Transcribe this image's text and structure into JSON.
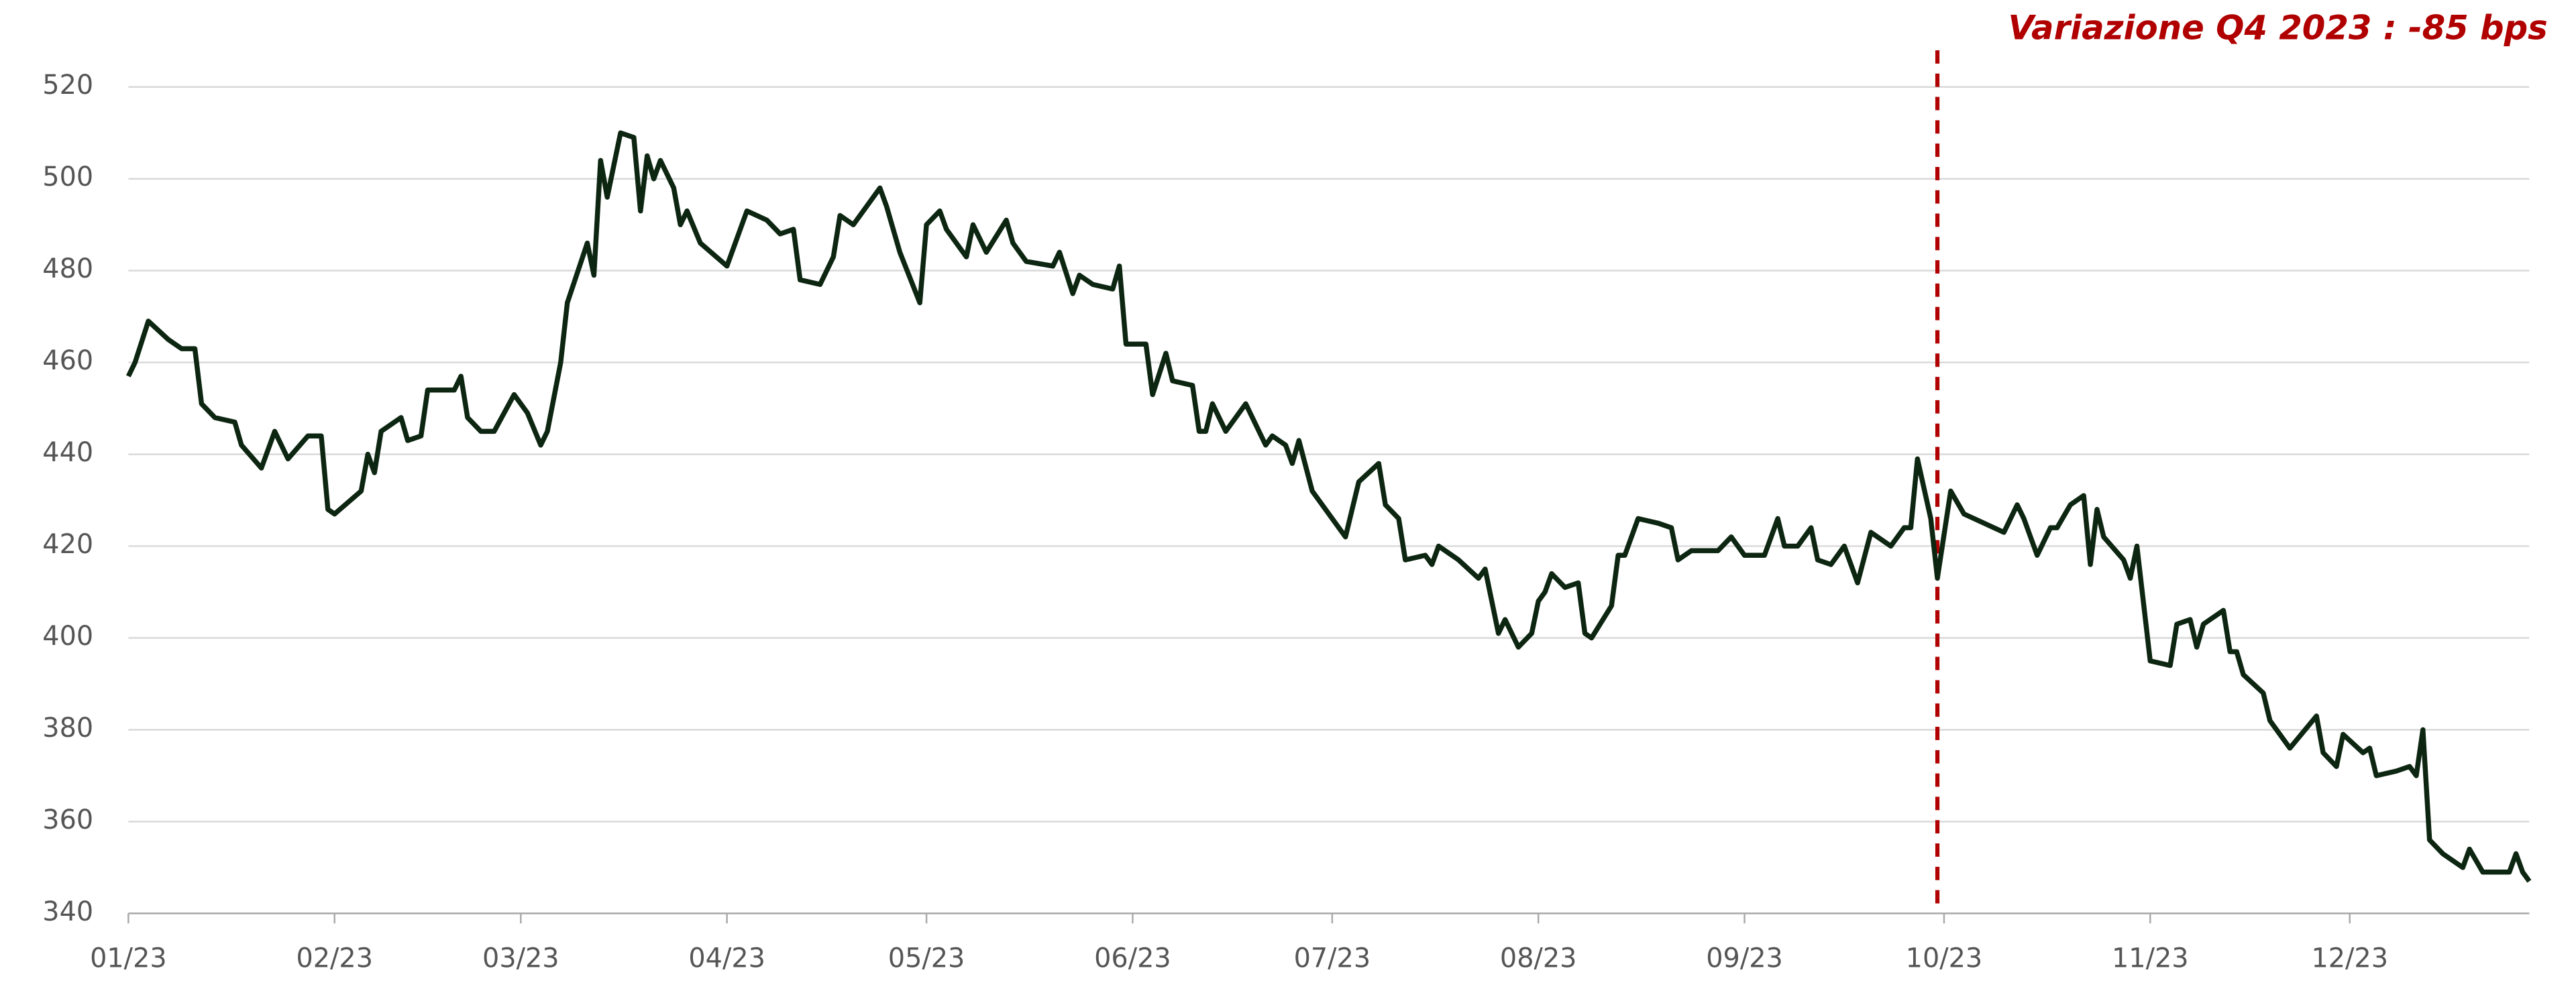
{
  "chart_data": {
    "type": "line",
    "annotation": "Variazione Q4 2023 : -85 bps",
    "annotation_color": "#b00000",
    "vline": {
      "x": 272,
      "color": "#b00000",
      "dashed": true
    },
    "x": [
      0,
      1,
      3,
      6,
      8,
      10,
      11,
      13,
      16,
      17,
      20,
      22,
      24,
      27,
      29,
      30,
      31,
      35,
      36,
      37,
      38,
      41,
      42,
      44,
      45,
      49,
      50,
      51,
      53,
      55,
      58,
      60,
      62,
      63,
      65,
      66,
      69,
      70,
      71,
      72,
      74,
      76,
      77,
      78,
      79,
      80,
      82,
      83,
      84,
      86,
      90,
      91,
      93,
      96,
      98,
      100,
      101,
      104,
      106,
      107,
      109,
      113,
      114,
      116,
      119,
      120,
      122,
      123,
      126,
      127,
      129,
      132,
      133,
      135,
      139,
      140,
      142,
      143,
      145,
      148,
      149,
      150,
      153,
      154,
      156,
      157,
      160,
      161,
      162,
      163,
      165,
      168,
      171,
      172,
      174,
      175,
      176,
      178,
      183,
      185,
      188,
      189,
      191,
      192,
      195,
      196,
      197,
      200,
      203,
      204,
      206,
      207,
      209,
      211,
      212,
      213,
      214,
      216,
      218,
      219,
      220,
      223,
      224,
      225,
      227,
      230,
      232,
      233,
      235,
      239,
      241,
      243,
      246,
      248,
      249,
      251,
      253,
      254,
      256,
      258,
      260,
      262,
      265,
      267,
      268,
      269,
      271,
      272,
      274,
      276,
      282,
      284,
      285,
      287,
      289,
      290,
      292,
      294,
      295,
      296,
      297,
      300,
      301,
      302,
      304,
      307,
      308,
      310,
      311,
      312,
      314,
      315,
      316,
      317,
      318,
      321,
      322,
      325,
      329,
      330,
      332,
      333,
      336,
      337,
      338,
      341,
      343,
      344,
      345,
      346,
      348,
      351,
      352,
      354,
      358,
      359,
      360,
      361
    ],
    "series": [
      {
        "color": "#0d2611",
        "values": [
          457,
          460,
          469,
          465,
          463,
          463,
          451,
          448,
          447,
          442,
          437,
          445,
          439,
          444,
          444,
          428,
          427,
          432,
          440,
          436,
          445,
          448,
          443,
          444,
          454,
          454,
          457,
          448,
          445,
          445,
          453,
          449,
          442,
          445,
          460,
          473,
          486,
          479,
          504,
          496,
          510,
          509,
          493,
          505,
          500,
          504,
          498,
          490,
          493,
          486,
          481,
          485,
          493,
          491,
          488,
          489,
          478,
          477,
          483,
          492,
          490,
          498,
          494,
          484,
          473,
          490,
          493,
          489,
          483,
          490,
          484,
          491,
          486,
          482,
          481,
          484,
          475,
          479,
          477,
          476,
          481,
          464,
          464,
          453,
          462,
          456,
          455,
          445,
          445,
          451,
          445,
          451,
          442,
          444,
          442,
          438,
          443,
          432,
          422,
          434,
          438,
          429,
          426,
          417,
          418,
          416,
          420,
          417,
          413,
          415,
          401,
          404,
          398,
          401,
          408,
          410,
          414,
          411,
          412,
          401,
          400,
          407,
          418,
          418,
          426,
          425,
          424,
          417,
          419,
          419,
          422,
          418,
          418,
          426,
          420,
          420,
          424,
          417,
          416,
          420,
          412,
          423,
          420,
          424,
          424,
          439,
          426,
          413,
          432,
          427,
          423,
          429,
          426,
          418,
          424,
          424,
          429,
          431,
          416,
          428,
          422,
          417,
          413,
          420,
          395,
          394,
          403,
          404,
          398,
          403,
          405,
          406,
          397,
          397,
          392,
          388,
          382,
          376,
          383,
          375,
          372,
          379,
          375,
          376,
          370,
          371,
          372,
          370,
          380,
          356,
          353,
          350,
          354,
          349,
          349,
          353,
          349,
          347
        ]
      }
    ],
    "xlim": [
      0,
      361
    ],
    "ylim": [
      340,
      528
    ],
    "xticks": [
      {
        "value": 0,
        "label": "01/23"
      },
      {
        "value": 31,
        "label": "02/23"
      },
      {
        "value": 59,
        "label": "03/23"
      },
      {
        "value": 90,
        "label": "04/23"
      },
      {
        "value": 120,
        "label": "05/23"
      },
      {
        "value": 151,
        "label": "06/23"
      },
      {
        "value": 181,
        "label": "07/23"
      },
      {
        "value": 212,
        "label": "08/23"
      },
      {
        "value": 243,
        "label": "09/23"
      },
      {
        "value": 273,
        "label": "10/23"
      },
      {
        "value": 304,
        "label": "11/23"
      },
      {
        "value": 334,
        "label": "12/23"
      }
    ],
    "yticks": [
      340,
      360,
      380,
      400,
      420,
      440,
      460,
      480,
      500,
      520
    ],
    "grid": true
  }
}
